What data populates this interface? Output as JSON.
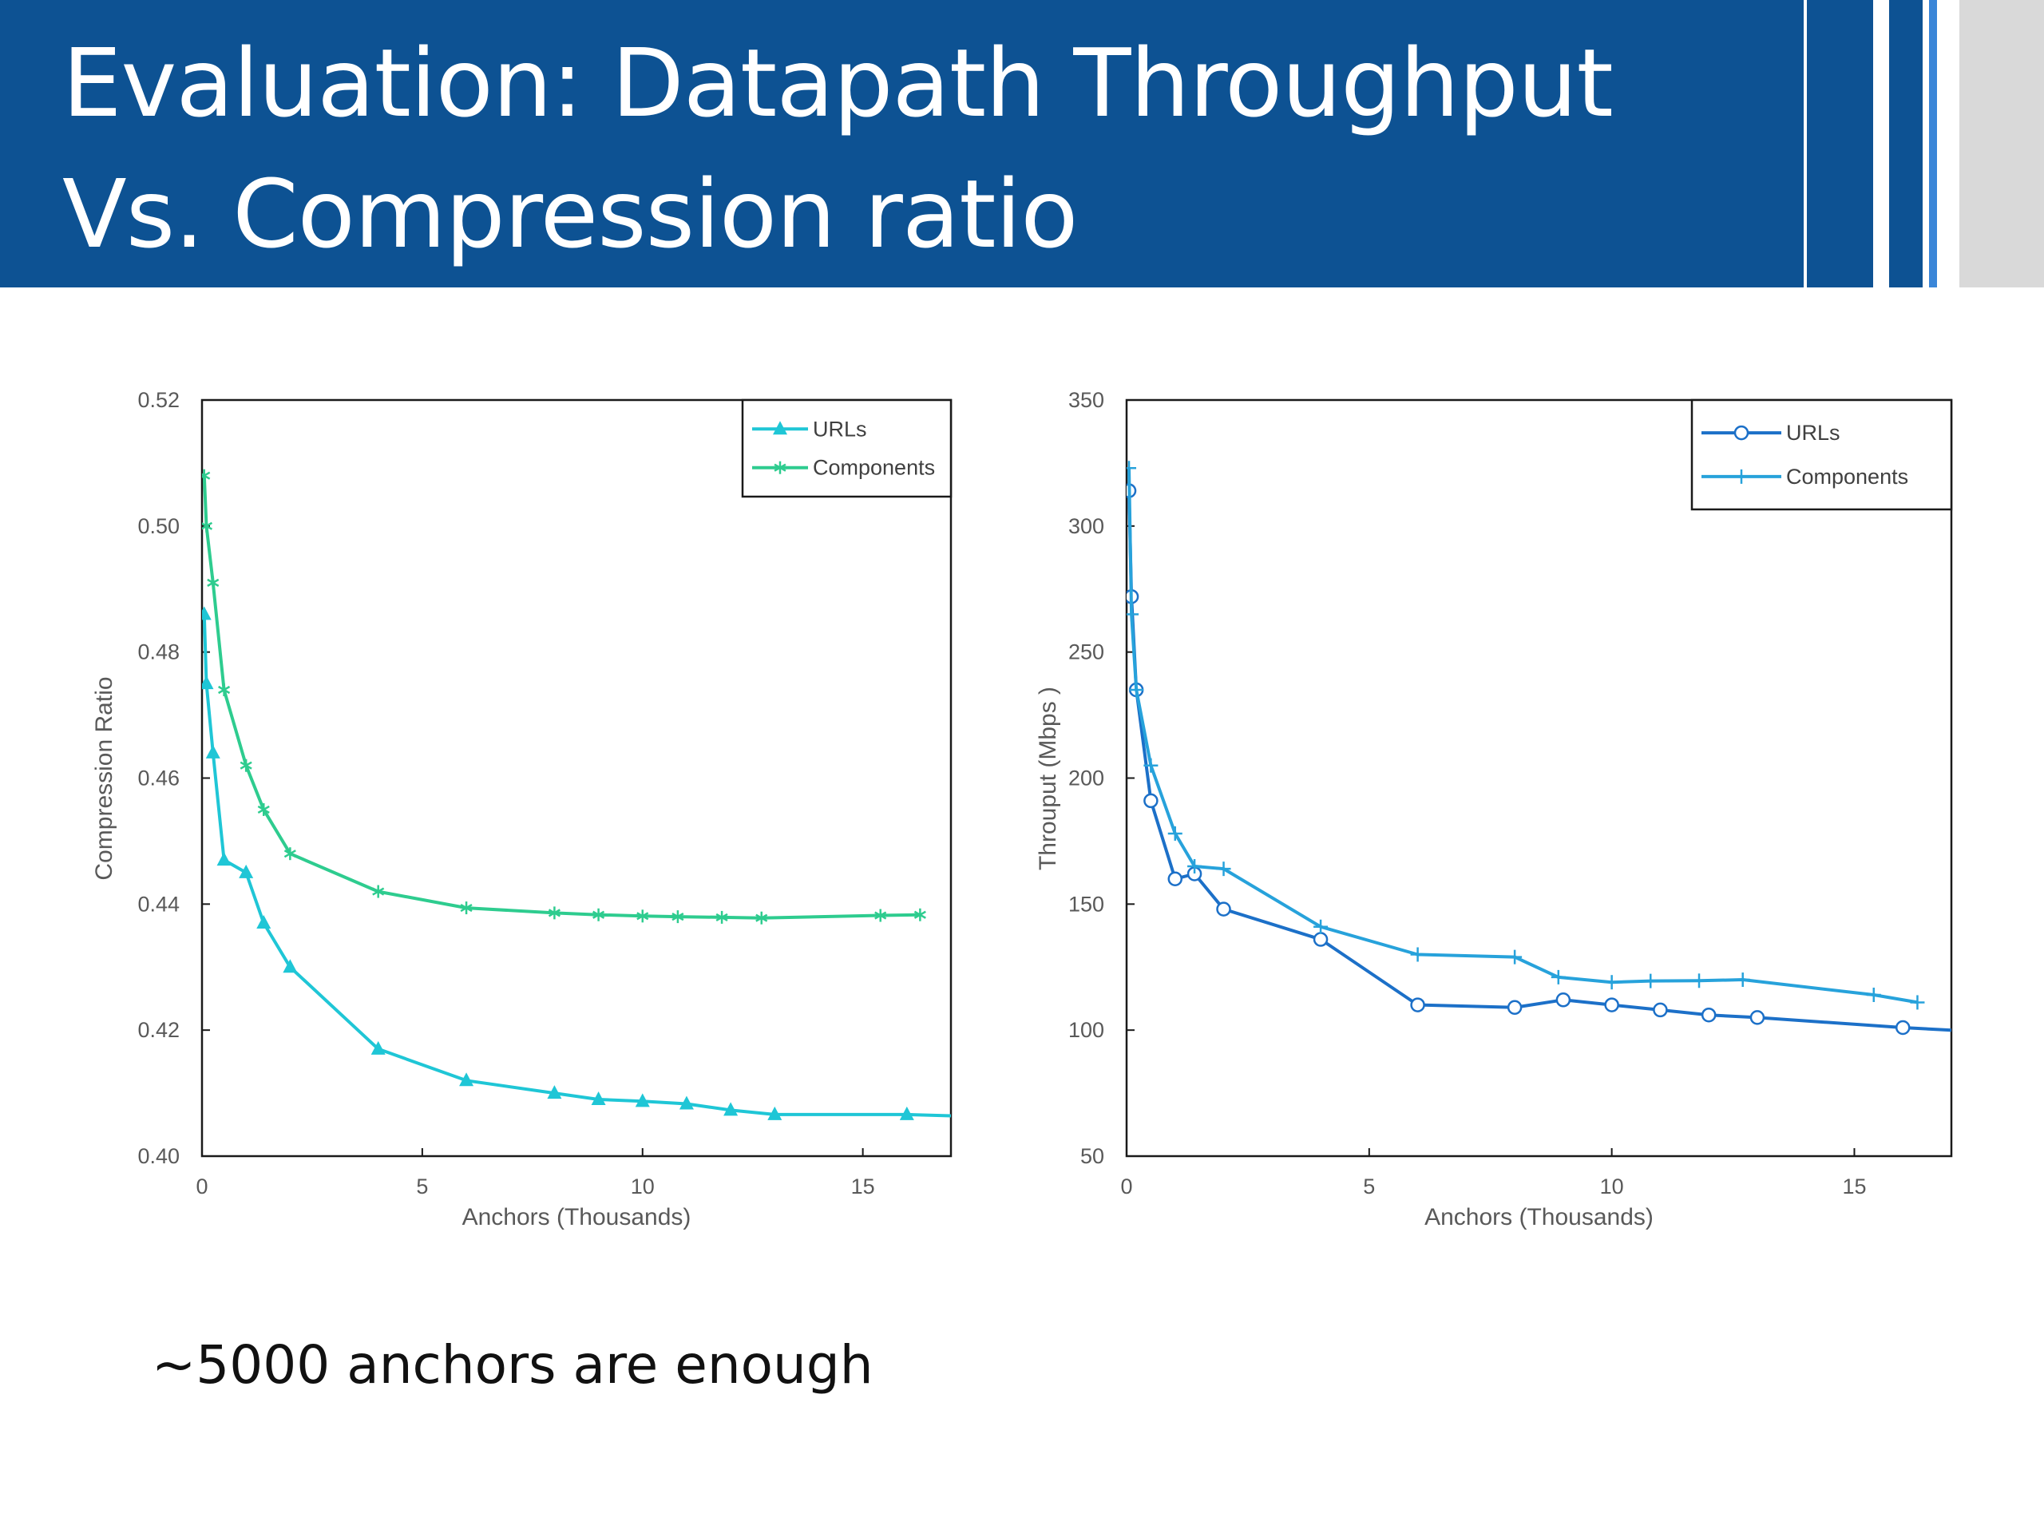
{
  "slide": {
    "title_line1": "Evaluation: Datapath Throughput",
    "title_line2": "Vs. Compression ratio",
    "note": "~5000 anchors are enough"
  },
  "colors": {
    "title_band": "#0D5293",
    "title_text": "#FFFFFF",
    "side_gray": "#D9D9D9"
  },
  "chart_data": [
    {
      "type": "line",
      "title": "",
      "xlabel": "Anchors (Thousands)",
      "ylabel": "Compression Ratio",
      "xlim": [
        0,
        17
      ],
      "ylim": [
        0.4,
        0.52
      ],
      "xticks": [
        0,
        5,
        10,
        15
      ],
      "yticks": [
        0.4,
        0.42,
        0.44,
        0.46,
        0.48,
        0.5,
        0.52
      ],
      "ytick_decimals": 2,
      "grid": false,
      "legend": "top-right",
      "series": [
        {
          "name": "URLs",
          "color": "#1FC6D6",
          "marker": "triangle",
          "x": [
            0.05,
            0.1,
            0.25,
            0.5,
            1.0,
            1.4,
            2.0,
            4.0,
            6.0,
            8.0,
            9.0,
            10.0,
            11.0,
            12.0,
            13.0,
            16.0,
            17.0
          ],
          "y": [
            0.486,
            0.475,
            0.464,
            0.447,
            0.445,
            0.437,
            0.43,
            0.417,
            0.412,
            0.41,
            0.409,
            0.4087,
            0.4083,
            0.4073,
            0.4066,
            0.4066,
            0.4064
          ]
        },
        {
          "name": "Components",
          "color": "#2ECC8F",
          "marker": "asterisk",
          "x": [
            0.05,
            0.1,
            0.25,
            0.5,
            1.0,
            1.4,
            2.0,
            4.0,
            6.0,
            8.0,
            9.0,
            10.0,
            10.8,
            11.8,
            12.7,
            15.4,
            16.3
          ],
          "y": [
            0.508,
            0.5,
            0.491,
            0.474,
            0.462,
            0.455,
            0.448,
            0.442,
            0.4394,
            0.4386,
            0.4383,
            0.4381,
            0.438,
            0.4379,
            0.4378,
            0.4382,
            0.4383
          ]
        }
      ]
    },
    {
      "type": "line",
      "title": "",
      "xlabel": "Anchors (Thousands)",
      "ylabel": "Throuput (Mbps )",
      "xlim": [
        0,
        17
      ],
      "ylim": [
        50,
        350
      ],
      "xticks": [
        0,
        5,
        10,
        15
      ],
      "yticks": [
        50,
        100,
        150,
        200,
        250,
        300,
        350
      ],
      "ytick_decimals": 0,
      "grid": false,
      "legend": "top-right",
      "series": [
        {
          "name": "URLs",
          "color": "#1C70C8",
          "marker": "circle",
          "x": [
            0.05,
            0.1,
            0.2,
            0.5,
            1.0,
            1.4,
            2.0,
            4.0,
            6.0,
            8.0,
            9.0,
            10.0,
            11.0,
            12.0,
            13.0,
            16.0,
            17.0
          ],
          "y": [
            314,
            272,
            235,
            191,
            160,
            162,
            148,
            136,
            110,
            109,
            112,
            110,
            108,
            106,
            105,
            101,
            100
          ]
        },
        {
          "name": "Components",
          "color": "#27A2DB",
          "marker": "plus",
          "x": [
            0.05,
            0.1,
            0.2,
            0.5,
            1.0,
            1.4,
            2.0,
            4.0,
            6.0,
            8.0,
            8.9,
            10.0,
            10.8,
            11.8,
            12.7,
            15.4,
            16.3
          ],
          "y": [
            323,
            265,
            235,
            205,
            178,
            165,
            164,
            141,
            130,
            129,
            121,
            119,
            119.5,
            119.6,
            120,
            114,
            111
          ]
        }
      ]
    }
  ]
}
